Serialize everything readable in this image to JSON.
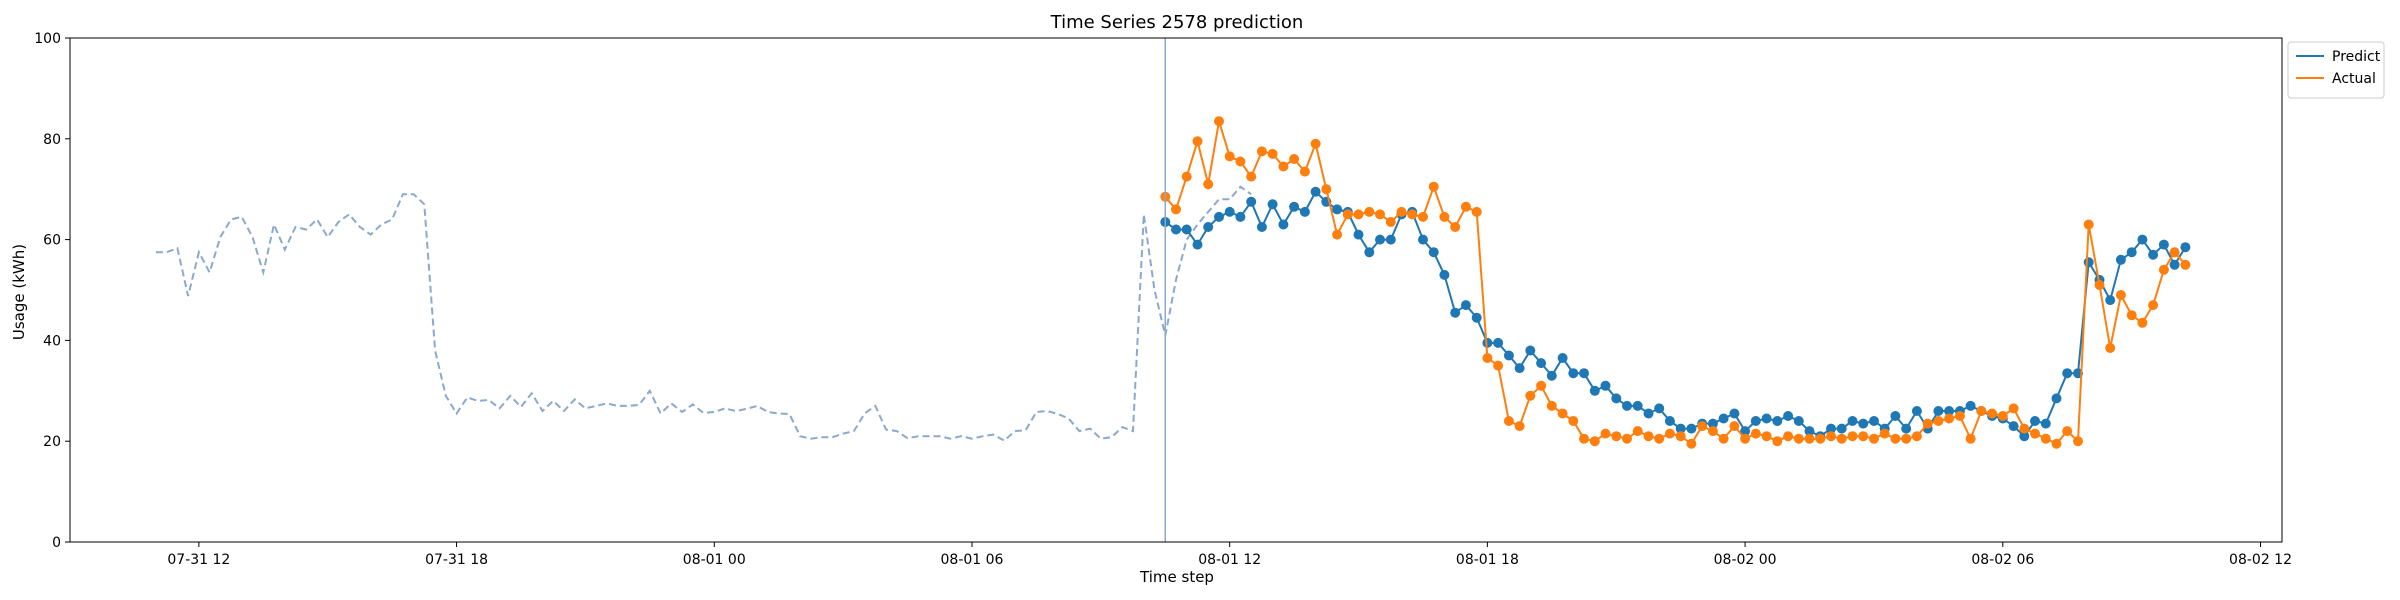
{
  "chart_data": {
    "type": "line",
    "title": "Time Series 2578 prediction",
    "xlabel": "Time step",
    "ylabel": "Usage (kWh)",
    "ylim": [
      0,
      100
    ],
    "yticks": [
      0,
      20,
      40,
      60,
      80,
      100
    ],
    "xlim": [
      "2020-07-31T09:00",
      "2020-08-02T12:30"
    ],
    "xticks": [
      {
        "t": "2020-07-31T12:00",
        "label": "07-31 12"
      },
      {
        "t": "2020-07-31T18:00",
        "label": "07-31 18"
      },
      {
        "t": "2020-08-01T00:00",
        "label": "08-01 00"
      },
      {
        "t": "2020-08-01T06:00",
        "label": "08-01 06"
      },
      {
        "t": "2020-08-01T12:00",
        "label": "08-01 12"
      },
      {
        "t": "2020-08-01T18:00",
        "label": "08-01 18"
      },
      {
        "t": "2020-08-02T00:00",
        "label": "08-02 00"
      },
      {
        "t": "2020-08-02T06:00",
        "label": "08-02 06"
      },
      {
        "t": "2020-08-02T12:00",
        "label": "08-02 12"
      }
    ],
    "interval_minutes": 15,
    "forecast_start": "2020-08-01T10:30",
    "legend_position": "upper right, outside plot",
    "grid": false,
    "history": {
      "start": "2020-07-31T11:00",
      "color": "#8aa9cc",
      "style": "dashed",
      "values": [
        57.5,
        57.5,
        58.3,
        48.8,
        57.5,
        53.5,
        60.5,
        64.0,
        64.5,
        60.5,
        53.5,
        63.0,
        58.0,
        62.5,
        62.0,
        64.0,
        60.5,
        63.5,
        65.0,
        62.5,
        61.0,
        63.0,
        64.0,
        69.0,
        69.0,
        67.0,
        38.0,
        29.0,
        25.5,
        28.7,
        28.0,
        28.2,
        26.5,
        29.0,
        26.8,
        29.5,
        26.0,
        28.0,
        26.0,
        28.3,
        26.5,
        27.0,
        27.5,
        27.0,
        27.0,
        27.2,
        30.0,
        25.5,
        27.5,
        25.8,
        27.3,
        25.6,
        25.8,
        26.5,
        26.0,
        26.4,
        27.0,
        25.8,
        25.5,
        25.4,
        21.0,
        20.5,
        20.8,
        20.8,
        21.5,
        22.0,
        25.5,
        27.0,
        22.3,
        22.0,
        20.6,
        21.0,
        21.0,
        21.0,
        20.5,
        21.0,
        20.5,
        21.0,
        21.3,
        20.1,
        22.0,
        22.2,
        25.8,
        26.0,
        25.4,
        24.5,
        22.0,
        22.5,
        20.5,
        20.8,
        22.8,
        22.0,
        65.0,
        50.0,
        41.0,
        52.0,
        60.0,
        63.0,
        65.5,
        68.0,
        68.0,
        70.5,
        69.0
      ]
    },
    "series": [
      {
        "name": "Predict",
        "color": "#1f77b4",
        "start": "2020-08-01T10:30",
        "values": [
          63.5,
          62.0,
          62.0,
          59.0,
          62.5,
          64.5,
          65.5,
          64.5,
          67.5,
          62.5,
          67.0,
          63.0,
          66.5,
          65.5,
          69.5,
          67.5,
          66.0,
          65.5,
          61.0,
          57.5,
          60.0,
          60.0,
          65.0,
          65.5,
          60.0,
          57.5,
          53.0,
          45.5,
          47.0,
          44.5,
          39.5,
          39.5,
          37.0,
          34.5,
          38.0,
          35.5,
          33.0,
          36.5,
          33.5,
          33.5,
          30.0,
          31.0,
          28.5,
          27.0,
          27.0,
          25.5,
          26.5,
          24.0,
          22.5,
          22.5,
          23.5,
          23.5,
          24.5,
          25.5,
          22.0,
          24.0,
          24.5,
          24.0,
          25.0,
          24.0,
          22.0,
          21.0,
          22.5,
          22.5,
          24.0,
          23.5,
          24.0,
          22.5,
          25.0,
          22.5,
          26.0,
          22.5,
          26.0,
          26.0,
          26.0,
          27.0,
          26.0,
          25.0,
          24.5,
          23.0,
          21.0,
          24.0,
          23.5,
          28.5,
          33.5,
          33.5,
          55.5,
          52.0,
          48.0,
          56.0,
          57.5,
          60.0,
          57.0,
          59.0,
          55.0,
          58.5
        ]
      },
      {
        "name": "Actual",
        "color": "#ff7f0e",
        "start": "2020-08-01T10:30",
        "values": [
          68.5,
          66.0,
          72.5,
          79.5,
          71.0,
          83.5,
          76.5,
          75.5,
          72.5,
          77.5,
          77.0,
          74.5,
          76.0,
          73.5,
          79.0,
          70.0,
          61.0,
          65.0,
          65.0,
          65.5,
          65.0,
          63.5,
          65.5,
          65.0,
          64.5,
          70.5,
          64.5,
          62.5,
          66.5,
          65.5,
          36.5,
          35.0,
          24.0,
          23.0,
          29.0,
          31.0,
          27.0,
          25.5,
          24.0,
          20.5,
          20.0,
          21.5,
          21.0,
          20.5,
          22.0,
          21.0,
          20.5,
          21.5,
          21.0,
          19.5,
          23.0,
          22.0,
          20.5,
          23.0,
          20.5,
          21.5,
          21.0,
          20.0,
          21.0,
          20.5,
          20.5,
          20.5,
          21.0,
          20.5,
          21.0,
          21.0,
          20.5,
          21.5,
          20.5,
          20.5,
          21.0,
          23.5,
          24.0,
          24.5,
          25.0,
          20.5,
          26.0,
          25.5,
          25.0,
          26.5,
          22.5,
          21.5,
          20.5,
          19.5,
          22.0,
          20.0,
          63.0,
          51.0,
          38.5,
          49.0,
          45.0,
          43.5,
          47.0,
          54.0,
          57.5,
          55.0
        ]
      }
    ]
  }
}
